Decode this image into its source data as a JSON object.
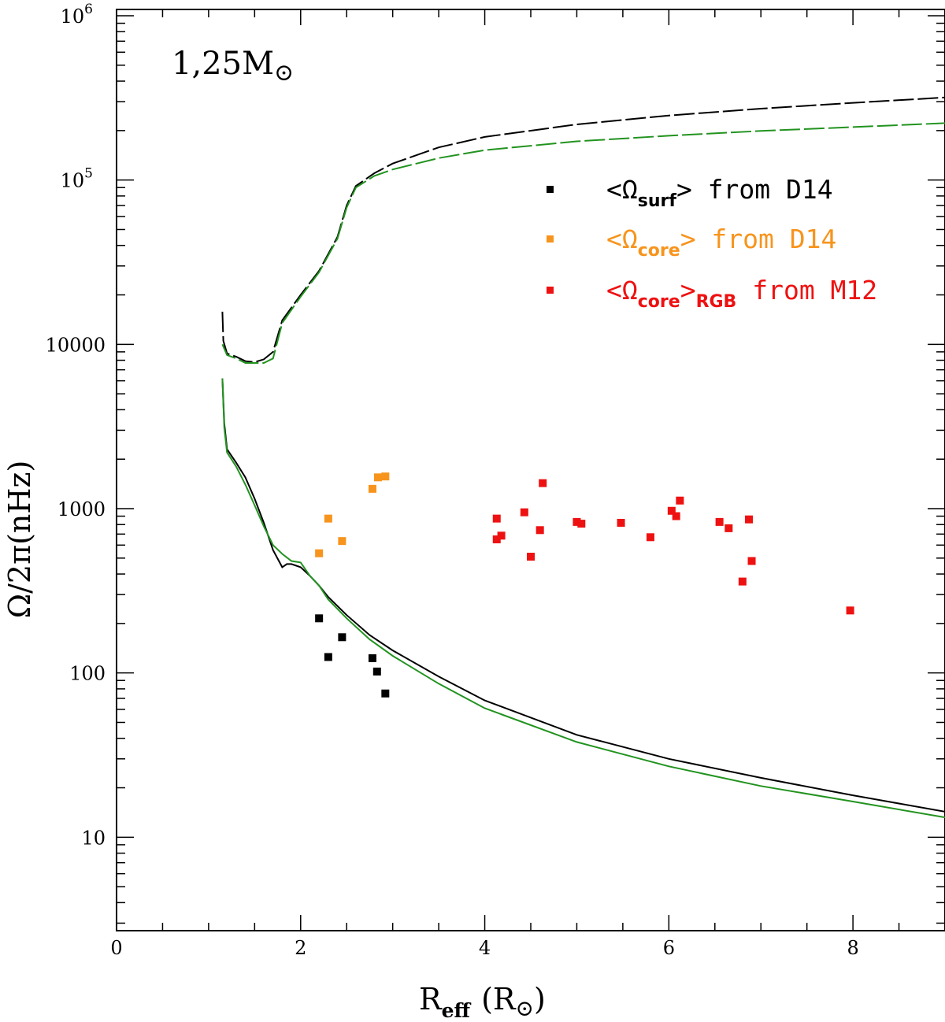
{
  "chart_data": {
    "type": "scatter",
    "log_y": true,
    "xlim": [
      0,
      9
    ],
    "ylim": [
      2.7,
      1000000
    ],
    "x_ticks": [
      {
        "value": 0,
        "label": "0"
      },
      {
        "value": 2,
        "label": "2"
      },
      {
        "value": 4,
        "label": "4"
      },
      {
        "value": 6,
        "label": "6"
      },
      {
        "value": 8,
        "label": "8"
      }
    ],
    "y_ticks": [
      {
        "value": 10,
        "base": "10",
        "exp": ""
      },
      {
        "value": 100,
        "base": "100",
        "exp": ""
      },
      {
        "value": 1000,
        "base": "1000",
        "exp": ""
      },
      {
        "value": 10000,
        "base": "10000",
        "exp": ""
      },
      {
        "value": 100000,
        "base": "10",
        "exp": "5"
      },
      {
        "value": 1000000,
        "base": "10",
        "exp": "6"
      }
    ],
    "xlabel": {
      "main": "R",
      "sub": "eff",
      "unit": "(R",
      "unit_close": ")"
    },
    "ylabel": "Ω/2π(nHz)",
    "annotation": {
      "text": "1,25M",
      "symbol": "⊙"
    },
    "legend": [
      {
        "left": "<Ω",
        "sub": "surf",
        "right": "> from D14",
        "color": "#000000"
      },
      {
        "left": "<Ω",
        "sub": "core",
        "right": "> from D14",
        "color": "#f7941d"
      },
      {
        "left": "<Ω",
        "sub": "core",
        "right": ">",
        "sub2": "RGB",
        "tail": " from M12",
        "color": "#ee1111"
      }
    ],
    "series": [
      {
        "name": "<Ωsurf> from D14",
        "color": "#000000",
        "points": [
          [
            2.2,
            215
          ],
          [
            2.3,
            125
          ],
          [
            2.45,
            165
          ],
          [
            2.78,
            123
          ],
          [
            2.83,
            102
          ],
          [
            2.92,
            75
          ]
        ]
      },
      {
        "name": "<Ωcore> from D14",
        "color": "#f7941d",
        "points": [
          [
            2.2,
            535
          ],
          [
            2.3,
            870
          ],
          [
            2.45,
            635
          ],
          [
            2.78,
            1320
          ],
          [
            2.84,
            1550
          ],
          [
            2.92,
            1570
          ]
        ]
      },
      {
        "name": "<Ωcore>RGB from M12",
        "color": "#ee1111",
        "points": [
          [
            4.13,
            870
          ],
          [
            4.13,
            650
          ],
          [
            4.18,
            685
          ],
          [
            4.43,
            950
          ],
          [
            4.5,
            510
          ],
          [
            4.6,
            740
          ],
          [
            4.63,
            1430
          ],
          [
            5.0,
            830
          ],
          [
            5.05,
            810
          ],
          [
            5.48,
            820
          ],
          [
            5.8,
            670
          ],
          [
            6.03,
            970
          ],
          [
            6.08,
            900
          ],
          [
            6.12,
            1120
          ],
          [
            6.55,
            830
          ],
          [
            6.65,
            760
          ],
          [
            6.8,
            360
          ],
          [
            6.87,
            860
          ],
          [
            6.9,
            480
          ],
          [
            7.97,
            240
          ]
        ]
      }
    ],
    "curves": [
      {
        "color": "#000000",
        "style": "dashed",
        "points": [
          [
            1.15,
            15800
          ],
          [
            1.16,
            10500
          ],
          [
            1.2,
            8800
          ],
          [
            1.3,
            8400
          ],
          [
            1.4,
            7900
          ],
          [
            1.5,
            7800
          ],
          [
            1.6,
            8100
          ],
          [
            1.7,
            9000
          ],
          [
            1.8,
            14000
          ],
          [
            2.0,
            20000
          ],
          [
            2.2,
            28000
          ],
          [
            2.4,
            45000
          ],
          [
            2.5,
            70000
          ],
          [
            2.6,
            92000
          ],
          [
            2.8,
            110000
          ],
          [
            3.0,
            126000
          ],
          [
            3.5,
            158000
          ],
          [
            4.0,
            183000
          ],
          [
            5.0,
            218000
          ],
          [
            6.0,
            247000
          ],
          [
            7.0,
            272000
          ],
          [
            8.0,
            295000
          ],
          [
            9.0,
            318000
          ]
        ]
      },
      {
        "color": "#22931f",
        "style": "dashed",
        "points": [
          [
            1.15,
            10000
          ],
          [
            1.2,
            8600
          ],
          [
            1.3,
            8200
          ],
          [
            1.4,
            7700
          ],
          [
            1.5,
            7700
          ],
          [
            1.6,
            7700
          ],
          [
            1.7,
            8200
          ],
          [
            1.8,
            13500
          ],
          [
            2.0,
            19500
          ],
          [
            2.2,
            27500
          ],
          [
            2.4,
            44000
          ],
          [
            2.5,
            68000
          ],
          [
            2.6,
            90000
          ],
          [
            2.8,
            106000
          ],
          [
            3.0,
            116000
          ],
          [
            3.5,
            136000
          ],
          [
            4.0,
            152000
          ],
          [
            5.0,
            172000
          ],
          [
            6.0,
            186000
          ],
          [
            7.0,
            199000
          ],
          [
            8.0,
            210000
          ],
          [
            9.0,
            222000
          ]
        ]
      },
      {
        "color": "#000000",
        "style": "solid",
        "points": [
          [
            1.15,
            6200
          ],
          [
            1.17,
            3300
          ],
          [
            1.2,
            2300
          ],
          [
            1.3,
            1900
          ],
          [
            1.4,
            1550
          ],
          [
            1.5,
            1150
          ],
          [
            1.6,
            820
          ],
          [
            1.7,
            560
          ],
          [
            1.8,
            440
          ],
          [
            1.85,
            460
          ],
          [
            1.9,
            460
          ],
          [
            2.0,
            440
          ],
          [
            2.1,
            390
          ],
          [
            2.2,
            340
          ],
          [
            2.3,
            290
          ],
          [
            2.5,
            225
          ],
          [
            2.75,
            170
          ],
          [
            3.0,
            137
          ],
          [
            3.5,
            95
          ],
          [
            4.0,
            68
          ],
          [
            5.0,
            42
          ],
          [
            6.0,
            30
          ],
          [
            7.0,
            23
          ],
          [
            8.0,
            18
          ],
          [
            9.0,
            14.3
          ]
        ]
      },
      {
        "color": "#22931f",
        "style": "solid",
        "points": [
          [
            1.15,
            6200
          ],
          [
            1.17,
            3100
          ],
          [
            1.2,
            2200
          ],
          [
            1.3,
            1800
          ],
          [
            1.4,
            1400
          ],
          [
            1.5,
            1050
          ],
          [
            1.6,
            780
          ],
          [
            1.7,
            600
          ],
          [
            1.8,
            530
          ],
          [
            1.9,
            480
          ],
          [
            2.0,
            470
          ],
          [
            2.1,
            390
          ],
          [
            2.2,
            340
          ],
          [
            2.3,
            280
          ],
          [
            2.5,
            215
          ],
          [
            2.75,
            160
          ],
          [
            3.0,
            127
          ],
          [
            3.5,
            86
          ],
          [
            4.0,
            61
          ],
          [
            5.0,
            38
          ],
          [
            6.0,
            27
          ],
          [
            7.0,
            20.5
          ],
          [
            8.0,
            16.5
          ],
          [
            9.0,
            13.2
          ]
        ]
      }
    ]
  }
}
